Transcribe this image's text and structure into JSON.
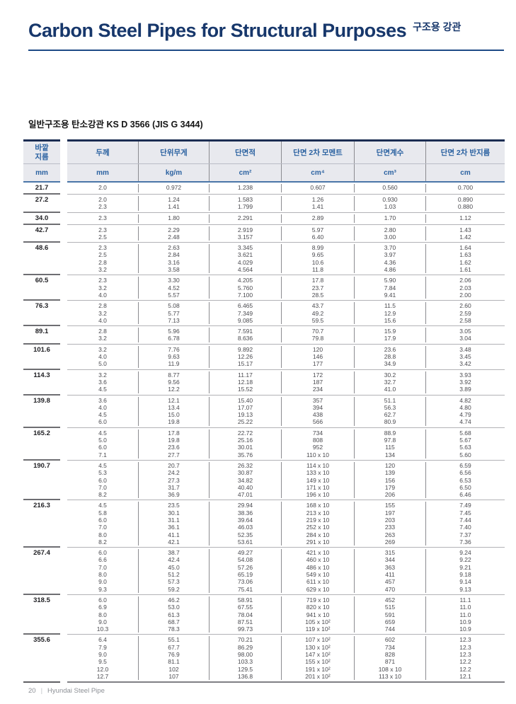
{
  "page": {
    "title": "Carbon Steel Pipes for Structural Purposes",
    "title_tag": "구조용 강관",
    "section_title": "일반구조용 탄소강관 KS D 3566 (JIS G 3444)"
  },
  "colors": {
    "navy_title": "#17376b",
    "title_rule": "#1d4a86",
    "header_bg": "#e8e9ee",
    "header_text": "#2b62a1",
    "header_top_border": "#1b2d52",
    "data_text": "#4a4a4f"
  },
  "footer": {
    "page_number": "20",
    "divider": "|",
    "brand": "Hyundai Steel Pipe"
  },
  "table": {
    "diameter_header": {
      "label_line1": "바깥",
      "label_line2": "지름",
      "unit": "mm"
    },
    "columns": [
      {
        "label": "두께",
        "unit": "mm"
      },
      {
        "label": "단위무게",
        "unit": "kg/m"
      },
      {
        "label": "단면적",
        "unit": "cm²"
      },
      {
        "label": "단면 2차 모멘트",
        "unit": "cm⁴"
      },
      {
        "label": "단면계수",
        "unit": "cm³"
      },
      {
        "label": "단면 2차 반지름",
        "unit": "cm"
      }
    ],
    "groups": [
      {
        "diameter": "21.7",
        "rows": [
          [
            "2.0",
            "0.972",
            "1.238",
            "0.607",
            "0.560",
            "0.700"
          ]
        ]
      },
      {
        "diameter": "27.2",
        "rows": [
          [
            "2.0",
            "1.24",
            "1.583",
            "1.26",
            "0.930",
            "0.890"
          ],
          [
            "2.3",
            "1.41",
            "1.799",
            "1.41",
            "1.03",
            "0.880"
          ]
        ]
      },
      {
        "diameter": "34.0",
        "rows": [
          [
            "2.3",
            "1.80",
            "2.291",
            "2.89",
            "1.70",
            "1.12"
          ]
        ]
      },
      {
        "diameter": "42.7",
        "rows": [
          [
            "2.3",
            "2.29",
            "2.919",
            "5.97",
            "2.80",
            "1.43"
          ],
          [
            "2.5",
            "2.48",
            "3.157",
            "6.40",
            "3.00",
            "1.42"
          ]
        ]
      },
      {
        "diameter": "48.6",
        "rows": [
          [
            "2.3",
            "2.63",
            "3.345",
            "8.99",
            "3.70",
            "1.64"
          ],
          [
            "2.5",
            "2.84",
            "3.621",
            "9.65",
            "3.97",
            "1.63"
          ],
          [
            "2.8",
            "3.16",
            "4.029",
            "10.6",
            "4.36",
            "1.62"
          ],
          [
            "3.2",
            "3.58",
            "4.564",
            "11.8",
            "4.86",
            "1.61"
          ]
        ]
      },
      {
        "diameter": "60.5",
        "rows": [
          [
            "2.3",
            "3.30",
            "4.205",
            "17.8",
            "5.90",
            "2.06"
          ],
          [
            "3.2",
            "4.52",
            "5.760",
            "23.7",
            "7.84",
            "2.03"
          ],
          [
            "4.0",
            "5.57",
            "7.100",
            "28.5",
            "9.41",
            "2.00"
          ]
        ]
      },
      {
        "diameter": "76.3",
        "rows": [
          [
            "2.8",
            "5.08",
            "6.465",
            "43.7",
            "11.5",
            "2.60"
          ],
          [
            "3.2",
            "5.77",
            "7.349",
            "49.2",
            "12.9",
            "2.59"
          ],
          [
            "4.0",
            "7.13",
            "9.085",
            "59.5",
            "15.6",
            "2.58"
          ]
        ]
      },
      {
        "diameter": "89.1",
        "rows": [
          [
            "2.8",
            "5.96",
            "7.591",
            "70.7",
            "15.9",
            "3.05"
          ],
          [
            "3.2",
            "6.78",
            "8.636",
            "79.8",
            "17.9",
            "3.04"
          ]
        ]
      },
      {
        "diameter": "101.6",
        "rows": [
          [
            "3.2",
            "7.76",
            "9.892",
            "120",
            "23.6",
            "3.48"
          ],
          [
            "4.0",
            "9.63",
            "12.26",
            "146",
            "28.8",
            "3.45"
          ],
          [
            "5.0",
            "11.9",
            "15.17",
            "177",
            "34.9",
            "3.42"
          ]
        ]
      },
      {
        "diameter": "114.3",
        "rows": [
          [
            "3.2",
            "8.77",
            "11.17",
            "172",
            "30.2",
            "3.93"
          ],
          [
            "3.6",
            "9.56",
            "12.18",
            "187",
            "32.7",
            "3.92"
          ],
          [
            "4.5",
            "12.2",
            "15.52",
            "234",
            "41.0",
            "3.89"
          ]
        ]
      },
      {
        "diameter": "139.8",
        "rows": [
          [
            "3.6",
            "12.1",
            "15.40",
            "357",
            "51.1",
            "4.82"
          ],
          [
            "4.0",
            "13.4",
            "17.07",
            "394",
            "56.3",
            "4.80"
          ],
          [
            "4.5",
            "15.0",
            "19.13",
            "438",
            "62.7",
            "4.79"
          ],
          [
            "6.0",
            "19.8",
            "25.22",
            "566",
            "80.9",
            "4.74"
          ]
        ]
      },
      {
        "diameter": "165.2",
        "rows": [
          [
            "4.5",
            "17.8",
            "22.72",
            "734",
            "88.9",
            "5.68"
          ],
          [
            "5.0",
            "19.8",
            "25.16",
            "808",
            "97.8",
            "5.67"
          ],
          [
            "6.0",
            "23.6",
            "30.01",
            "952",
            "115",
            "5.63"
          ],
          [
            "7.1",
            "27.7",
            "35.76",
            "110 x 10",
            "134",
            "5.60"
          ]
        ]
      },
      {
        "diameter": "190.7",
        "rows": [
          [
            "4.5",
            "20.7",
            "26.32",
            "114 x 10",
            "120",
            "6.59"
          ],
          [
            "5.3",
            "24.2",
            "30.87",
            "133 x 10",
            "139",
            "6.56"
          ],
          [
            "6.0",
            "27.3",
            "34.82",
            "149 x 10",
            "156",
            "6.53"
          ],
          [
            "7.0",
            "31.7",
            "40.40",
            "171 x 10",
            "179",
            "6.50"
          ],
          [
            "8.2",
            "36.9",
            "47.01",
            "196 x 10",
            "206",
            "6.46"
          ]
        ]
      },
      {
        "diameter": "216.3",
        "rows": [
          [
            "4.5",
            "23.5",
            "29.94",
            "168 x 10",
            "155",
            "7.49"
          ],
          [
            "5.8",
            "30.1",
            "38.36",
            "213 x 10",
            "197",
            "7.45"
          ],
          [
            "6.0",
            "31.1",
            "39.64",
            "219 x 10",
            "203",
            "7.44"
          ],
          [
            "7.0",
            "36.1",
            "46.03",
            "252 x 10",
            "233",
            "7.40"
          ],
          [
            "8.0",
            "41.1",
            "52.35",
            "284 x 10",
            "263",
            "7.37"
          ],
          [
            "8.2",
            "42.1",
            "53.61",
            "291 x 10",
            "269",
            "7.36"
          ]
        ]
      },
      {
        "diameter": "267.4",
        "rows": [
          [
            "6.0",
            "38.7",
            "49.27",
            "421 x 10",
            "315",
            "9.24"
          ],
          [
            "6.6",
            "42.4",
            "54.08",
            "460 x 10",
            "344",
            "9.22"
          ],
          [
            "7.0",
            "45.0",
            "57.26",
            "486 x 10",
            "363",
            "9.21"
          ],
          [
            "8.0",
            "51.2",
            "65.19",
            "549 x 10",
            "411",
            "9.18"
          ],
          [
            "9.0",
            "57.3",
            "73.06",
            "611 x 10",
            "457",
            "9.14"
          ],
          [
            "9.3",
            "59.2",
            "75.41",
            "629 x 10",
            "470",
            "9.13"
          ]
        ]
      },
      {
        "diameter": "318.5",
        "rows": [
          [
            "6.0",
            "46.2",
            "58.91",
            "719 x 10",
            "452",
            "11.1"
          ],
          [
            "6.9",
            "53.0",
            "67.55",
            "820 x 10",
            "515",
            "11.0"
          ],
          [
            "8.0",
            "61.3",
            "78.04",
            "941 x 10",
            "591",
            "11.0"
          ],
          [
            "9.0",
            "68.7",
            "87.51",
            "105 x 10²",
            "659",
            "10.9"
          ],
          [
            "10.3",
            "78.3",
            "99.73",
            "119 x 10²",
            "744",
            "10.9"
          ]
        ]
      },
      {
        "diameter": "355.6",
        "rows": [
          [
            "6.4",
            "55.1",
            "70.21",
            "107 x 10²",
            "602",
            "12.3"
          ],
          [
            "7.9",
            "67.7",
            "86.29",
            "130 x 10²",
            "734",
            "12.3"
          ],
          [
            "9.0",
            "76.9",
            "98.00",
            "147 x 10²",
            "828",
            "12.3"
          ],
          [
            "9.5",
            "81.1",
            "103.3",
            "155 x 10²",
            "871",
            "12.2"
          ],
          [
            "12.0",
            "102",
            "129.5",
            "191 x 10²",
            "108 x 10",
            "12.2"
          ],
          [
            "12.7",
            "107",
            "136.8",
            "201 x 10²",
            "113 x 10",
            "12.1"
          ]
        ]
      }
    ]
  }
}
